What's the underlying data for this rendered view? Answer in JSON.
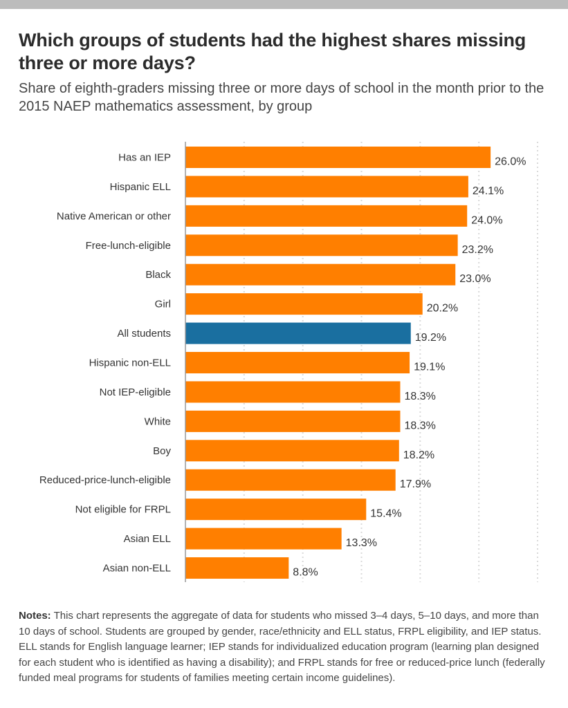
{
  "title": "Which groups of students had the highest shares missing three or more days?",
  "subtitle": "Share of eighth-graders missing three or more days of school in the month prior to the 2015 NAEP mathematics assessment, by group",
  "notes": {
    "label": "Notes:",
    "text": "This chart represents the aggregate of data for students who missed 3–4 days, 5–10 days, and more than 10 days of school. Students are grouped by gender, race/ethnicity and ELL status, FRPL eligibility, and IEP status. ELL stands for English language learner; IEP stands for individualized education program (learning plan designed for each student who is identified as having a disability); and FRPL stands for free or reduced-price lunch (federally funded meal programs for students of families meeting certain income guidelines)."
  },
  "chart_data": {
    "type": "bar",
    "orientation": "horizontal",
    "categories": [
      "Has an IEP",
      "Hispanic ELL",
      "Native American or other",
      "Free-lunch-eligible",
      "Black",
      "Girl",
      "All students",
      "Hispanic non-ELL",
      "Not IEP-eligible",
      "White",
      "Boy",
      "Reduced-price-lunch-eligible",
      "Not eligible for FRPL",
      "Asian ELL",
      "Asian non-ELL"
    ],
    "values": [
      26.0,
      24.1,
      24.0,
      23.2,
      23.0,
      20.2,
      19.2,
      19.1,
      18.3,
      18.3,
      18.2,
      17.9,
      15.4,
      13.3,
      8.8
    ],
    "data_labels": [
      "26.0%",
      "24.1%",
      "24.0%",
      "23.2%",
      "23.0%",
      "20.2%",
      "19.2%",
      "19.1%",
      "18.3%",
      "18.3%",
      "18.2%",
      "17.9%",
      "15.4%",
      "13.3%",
      "8.8%"
    ],
    "highlight": "All students",
    "xlim": [
      0,
      30
    ],
    "gridlines": [
      5,
      10,
      15,
      20,
      25,
      30
    ],
    "grid": true,
    "colors": {
      "default": "#ff7f00",
      "highlight": "#1a6fa0",
      "grid": "#d9d9d9",
      "axis": "#999999"
    }
  }
}
